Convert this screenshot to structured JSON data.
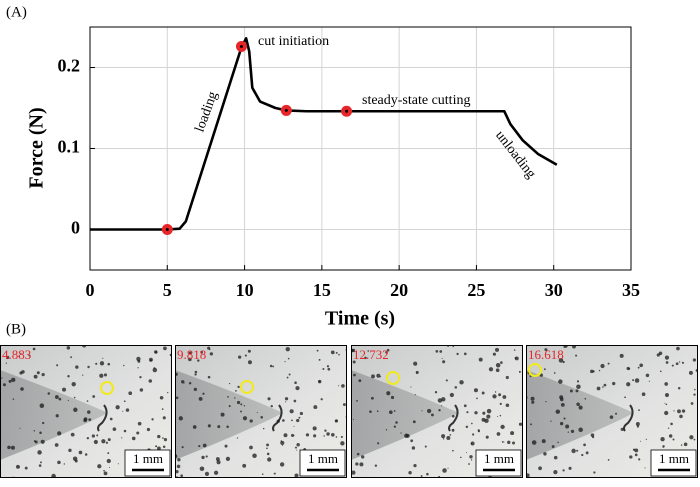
{
  "panel_labels": [
    "(A)",
    "(B)"
  ],
  "chart_data": {
    "type": "line",
    "xlabel": "Time (s)",
    "ylabel": "Force (N)",
    "xlim": [
      0,
      35
    ],
    "ylim": [
      -0.05,
      0.25
    ],
    "xticks": [
      0,
      5,
      10,
      15,
      20,
      25,
      30,
      35
    ],
    "yticks": [
      0,
      0.1,
      0.2
    ],
    "grid": true,
    "x": [
      0,
      5,
      5.8,
      6.2,
      9.8,
      10.1,
      10.3,
      10.5,
      11,
      12,
      12.7,
      14,
      16.6,
      20,
      25,
      26.8,
      27.2,
      28,
      29,
      30.2
    ],
    "series": [
      {
        "color": "#000000",
        "values": [
          0,
          0,
          0.001,
          0.01,
          0.225,
          0.236,
          0.22,
          0.175,
          0.158,
          0.15,
          0.147,
          0.146,
          0.146,
          0.146,
          0.146,
          0.146,
          0.13,
          0.11,
          0.093,
          0.08
        ]
      }
    ],
    "markers": {
      "color": "#e8262a",
      "x": [
        5,
        9.8,
        12.7,
        16.6
      ],
      "y": [
        0,
        0.226,
        0.147,
        0.146
      ]
    },
    "annotations": [
      "cut initiation",
      "loading",
      "steady-state cutting",
      "unloading"
    ]
  },
  "frames": [
    {
      "time_label": "4.883",
      "scale_bar": "1 mm"
    },
    {
      "time_label": "9.818",
      "scale_bar": "1 mm"
    },
    {
      "time_label": "12.732",
      "scale_bar": "1 mm"
    },
    {
      "time_label": "16.618",
      "scale_bar": "1 mm"
    }
  ]
}
